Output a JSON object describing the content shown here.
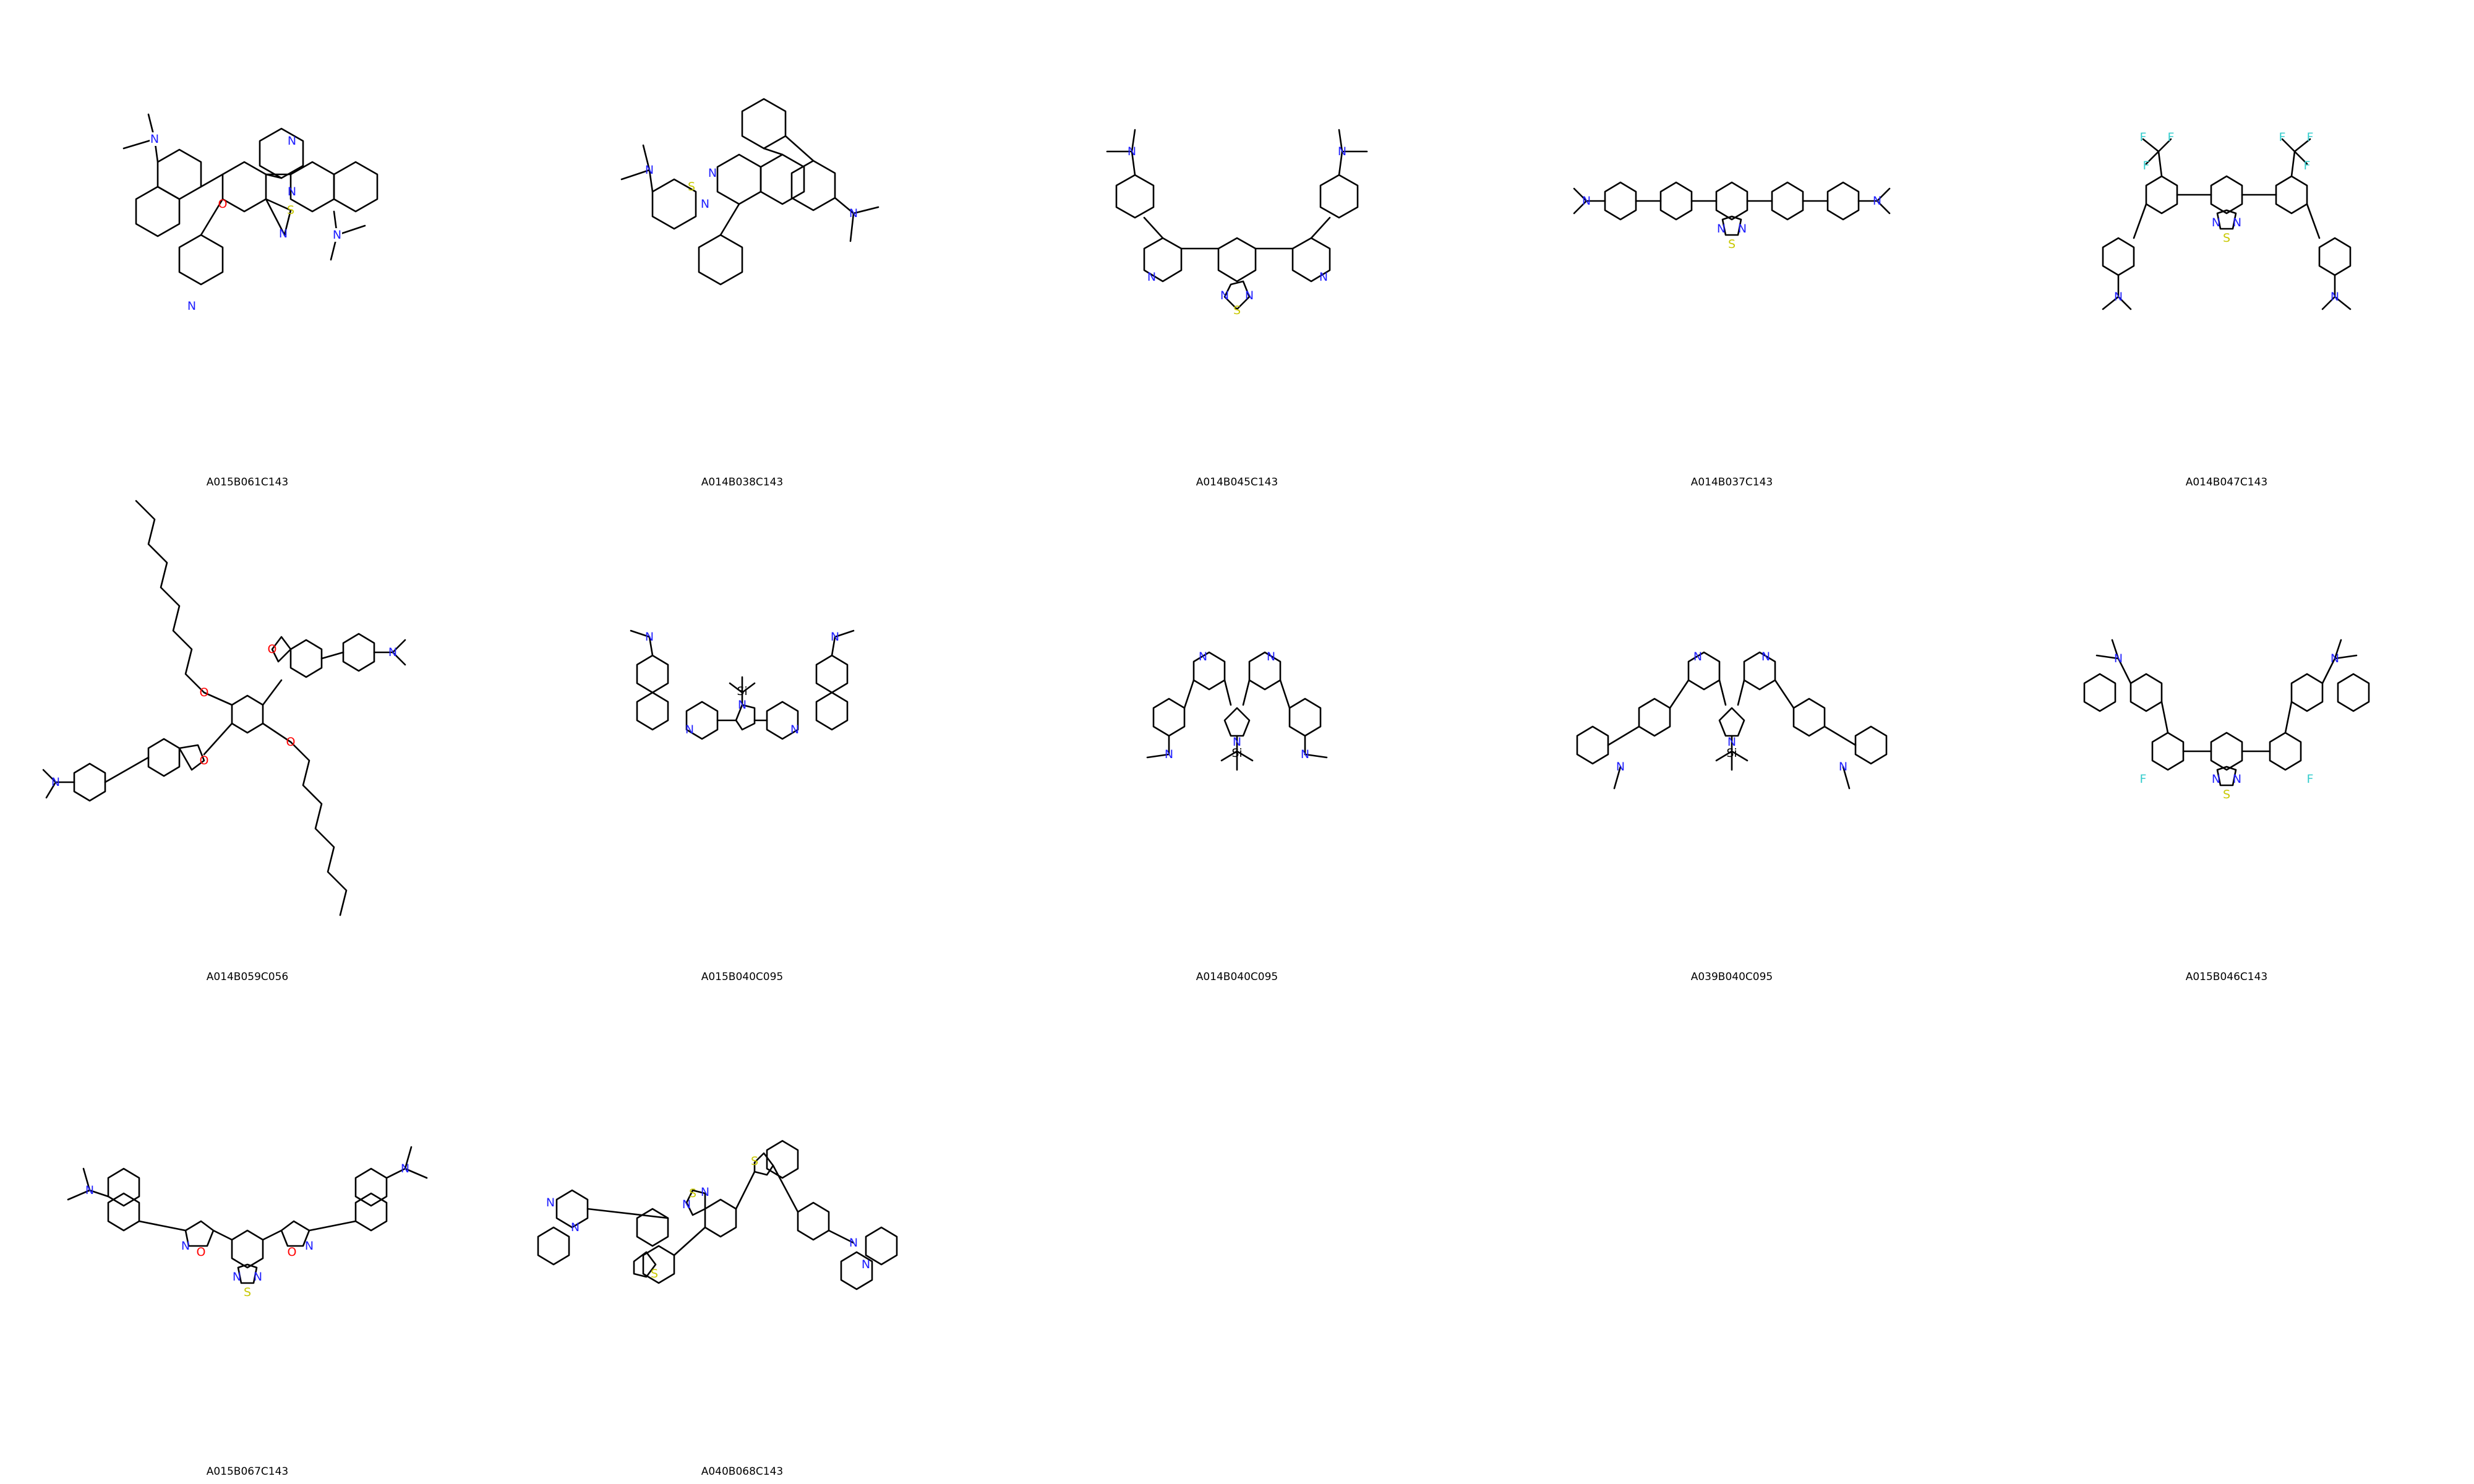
{
  "colors": {
    "carbon": "#000000",
    "nitrogen": "#1f1fff",
    "sulfur": "#c8c800",
    "oxygen": "#ff0000",
    "fluorine": "#33cccc",
    "silicon": "#000000"
  },
  "molecules": [
    {
      "id": "A015B061C143"
    },
    {
      "id": "A014B038C143"
    },
    {
      "id": "A014B045C143"
    },
    {
      "id": "A014B037C143"
    },
    {
      "id": "A014B047C143"
    },
    {
      "id": "A014B059C056"
    },
    {
      "id": "A015B040C095"
    },
    {
      "id": "A014B040C095"
    },
    {
      "id": "A039B040C095"
    },
    {
      "id": "A015B046C143"
    },
    {
      "id": "A015B067C143"
    },
    {
      "id": "A040B068C143"
    }
  ]
}
